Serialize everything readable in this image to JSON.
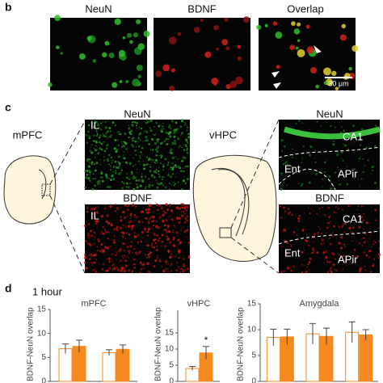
{
  "panels": {
    "b": {
      "letter": "b",
      "titles": [
        "NeuN",
        "BDNF",
        "Overlap"
      ],
      "scale_bar": "30 μm"
    },
    "c": {
      "letter": "c",
      "left": {
        "region": "mPFC",
        "top_title": "NeuN",
        "top_label": "IL",
        "bottom_title": "BDNF",
        "bottom_label": "IL"
      },
      "right": {
        "region": "vHPC",
        "top_title": "NeuN",
        "top_labels": [
          "CA1",
          "Ent",
          "APir"
        ],
        "bottom_title": "BDNF",
        "bottom_labels": [
          "CA1",
          "Ent",
          "APir"
        ]
      }
    },
    "d": {
      "letter": "d",
      "timepoint": "1 hour"
    }
  },
  "chart_data": [
    {
      "type": "bar",
      "title": "mPFC",
      "ylabel": "% BDNF-NeuN overlap",
      "categories": [
        null,
        null
      ],
      "ylim": [
        0,
        15
      ],
      "yticks": [
        0,
        5,
        10,
        15
      ],
      "series": [
        {
          "color": "#ffffff",
          "values": [
            6.8,
            6.0
          ],
          "errors": [
            1.0,
            0.6
          ]
        },
        {
          "color": "#f5891f",
          "values": [
            7.3,
            6.7
          ],
          "errors": [
            1.3,
            0.9
          ]
        }
      ]
    },
    {
      "type": "bar",
      "title": "vHPC",
      "ylabel": "% BDNF-NeuN overlap",
      "categories": [
        null
      ],
      "ylim": [
        0,
        22
      ],
      "yticks": [
        0,
        5,
        10,
        15
      ],
      "series": [
        {
          "color": "#ffffff",
          "values": [
            4.0
          ],
          "errors": [
            0.6
          ]
        },
        {
          "color": "#f5891f",
          "values": [
            8.8
          ],
          "errors": [
            2.0
          ]
        }
      ],
      "annotation": "*"
    },
    {
      "type": "bar",
      "title": "Amygdala",
      "ylabel": "% BDNF-NeuN overlap",
      "categories": [
        null,
        null,
        null
      ],
      "ylim": [
        0,
        15
      ],
      "yticks": [
        0,
        5,
        10,
        15
      ],
      "series": [
        {
          "color": "#ffffff",
          "values": [
            8.5,
            9.2,
            9.5
          ],
          "errors": [
            1.6,
            2.0,
            2.0
          ]
        },
        {
          "color": "#f5891f",
          "values": [
            8.6,
            8.7,
            9.0
          ],
          "errors": [
            1.5,
            1.6,
            1.0
          ]
        }
      ]
    }
  ]
}
